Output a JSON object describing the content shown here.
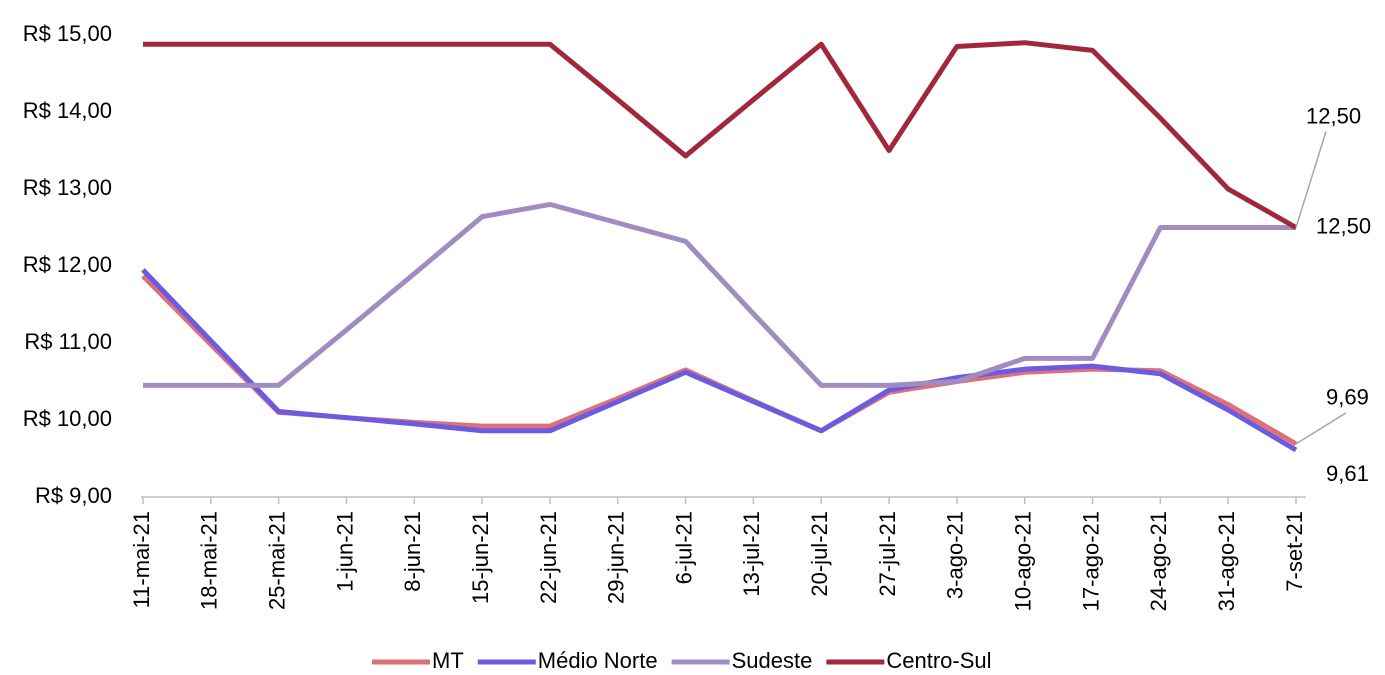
{
  "chart_data": {
    "type": "line",
    "categories": [
      "11-mai-21",
      "18-mai-21",
      "25-mai-21",
      "1-jun-21",
      "8-jun-21",
      "15-jun-21",
      "22-jun-21",
      "29-jun-21",
      "6-jul-21",
      "13-jul-21",
      "20-jul-21",
      "27-jul-21",
      "3-ago-21",
      "10-ago-21",
      "17-ago-21",
      "24-ago-21",
      "31-ago-21",
      "7-set-21"
    ],
    "series": [
      {
        "name": "MT",
        "color": "#e07078",
        "values": [
          11.87,
          10.98,
          10.1,
          10.03,
          9.97,
          9.92,
          9.92,
          10.28,
          10.65,
          10.25,
          9.86,
          10.36,
          10.5,
          10.62,
          10.66,
          10.64,
          10.2,
          9.69
        ],
        "value_labels": [
          null,
          null,
          null,
          null,
          null,
          null,
          null,
          null,
          null,
          null,
          null,
          null,
          null,
          null,
          null,
          null,
          null,
          "9,69"
        ]
      },
      {
        "name": "Médio Norte",
        "color": "#6a5be0",
        "values": [
          11.95,
          11.03,
          10.11,
          10.03,
          9.95,
          9.86,
          9.86,
          10.24,
          10.62,
          10.24,
          9.86,
          10.39,
          10.55,
          10.66,
          10.7,
          10.6,
          10.13,
          9.61
        ],
        "value_labels": [
          null,
          null,
          null,
          null,
          null,
          null,
          null,
          null,
          null,
          null,
          null,
          null,
          null,
          null,
          null,
          null,
          null,
          "9,61"
        ]
      },
      {
        "name": "Sudeste",
        "color": "#a08cc0",
        "values": [
          10.45,
          10.45,
          10.45,
          11.17,
          11.9,
          12.64,
          12.8,
          12.56,
          12.32,
          11.38,
          10.45,
          10.45,
          10.5,
          10.8,
          10.8,
          12.5,
          12.5,
          12.5
        ],
        "value_labels": [
          null,
          null,
          null,
          null,
          null,
          null,
          null,
          null,
          null,
          null,
          null,
          null,
          null,
          null,
          null,
          null,
          null,
          "12,50"
        ]
      },
      {
        "name": "Centro-Sul",
        "color": "#a0283a",
        "values": [
          14.88,
          14.88,
          14.88,
          14.88,
          14.88,
          14.88,
          14.88,
          14.16,
          13.43,
          14.16,
          14.88,
          13.5,
          14.85,
          14.9,
          14.8,
          13.92,
          13.0,
          12.5
        ],
        "value_labels": [
          null,
          null,
          null,
          null,
          null,
          null,
          null,
          null,
          null,
          null,
          null,
          null,
          null,
          null,
          null,
          null,
          null,
          "12,50"
        ]
      }
    ],
    "ylim": [
      9,
      15
    ],
    "yticks": [
      {
        "value": 9,
        "label": "R$ 9,00"
      },
      {
        "value": 10,
        "label": "R$ 10,00"
      },
      {
        "value": 11,
        "label": "R$ 11,00"
      },
      {
        "value": 12,
        "label": "R$ 12,00"
      },
      {
        "value": 13,
        "label": "R$ 13,00"
      },
      {
        "value": 14,
        "label": "R$ 14,00"
      },
      {
        "value": 15,
        "label": "R$ 15,00"
      }
    ],
    "legend": "bottom"
  }
}
